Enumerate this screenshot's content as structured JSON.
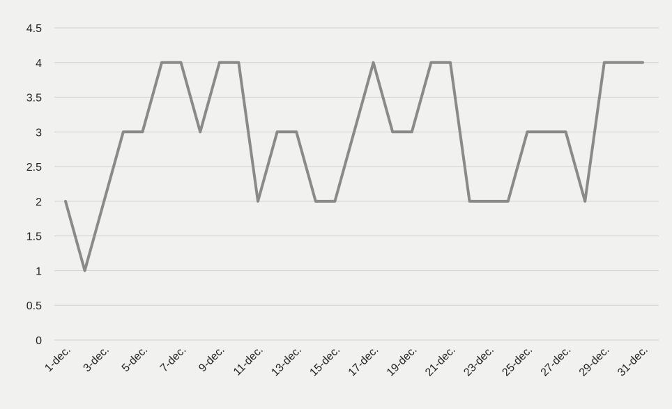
{
  "chart_data": {
    "type": "line",
    "title": "",
    "xlabel": "",
    "ylabel": "",
    "ylim": [
      0,
      4.5
    ],
    "y_ticks": [
      "0",
      "0.5",
      "1",
      "1.5",
      "2",
      "2.5",
      "3",
      "3.5",
      "4",
      "4.5"
    ],
    "y_tick_values": [
      0,
      0.5,
      1,
      1.5,
      2,
      2.5,
      3,
      3.5,
      4,
      4.5
    ],
    "grid": true,
    "legend": "none",
    "categories": [
      "1-dec.",
      "2-dec.",
      "3-dec.",
      "4-dec.",
      "5-dec.",
      "6-dec.",
      "7-dec.",
      "8-dec.",
      "9-dec.",
      "10-dec.",
      "11-dec.",
      "12-dec.",
      "13-dec.",
      "14-dec.",
      "15-dec.",
      "16-dec.",
      "17-dec.",
      "18-dec.",
      "19-dec.",
      "20-dec.",
      "21-dec.",
      "22-dec.",
      "23-dec.",
      "24-dec.",
      "25-dec.",
      "26-dec.",
      "27-dec.",
      "28-dec.",
      "29-dec.",
      "30-dec.",
      "31-dec."
    ],
    "x_tick_labels": [
      "1-dec.",
      "3-dec.",
      "5-dec.",
      "7-dec.",
      "9-dec.",
      "11-dec.",
      "13-dec.",
      "15-dec.",
      "17-dec.",
      "19-dec.",
      "21-dec.",
      "23-dec.",
      "25-dec.",
      "27-dec.",
      "29-dec.",
      "31-dec."
    ],
    "series": [
      {
        "color": "#8a8a8a",
        "values": [
          2,
          1,
          2,
          3,
          3,
          4,
          4,
          3,
          4,
          4,
          2,
          3,
          3,
          2,
          2,
          3,
          4,
          3,
          3,
          4,
          4,
          2,
          2,
          2,
          3,
          3,
          3,
          2,
          4,
          4,
          4
        ]
      }
    ]
  }
}
